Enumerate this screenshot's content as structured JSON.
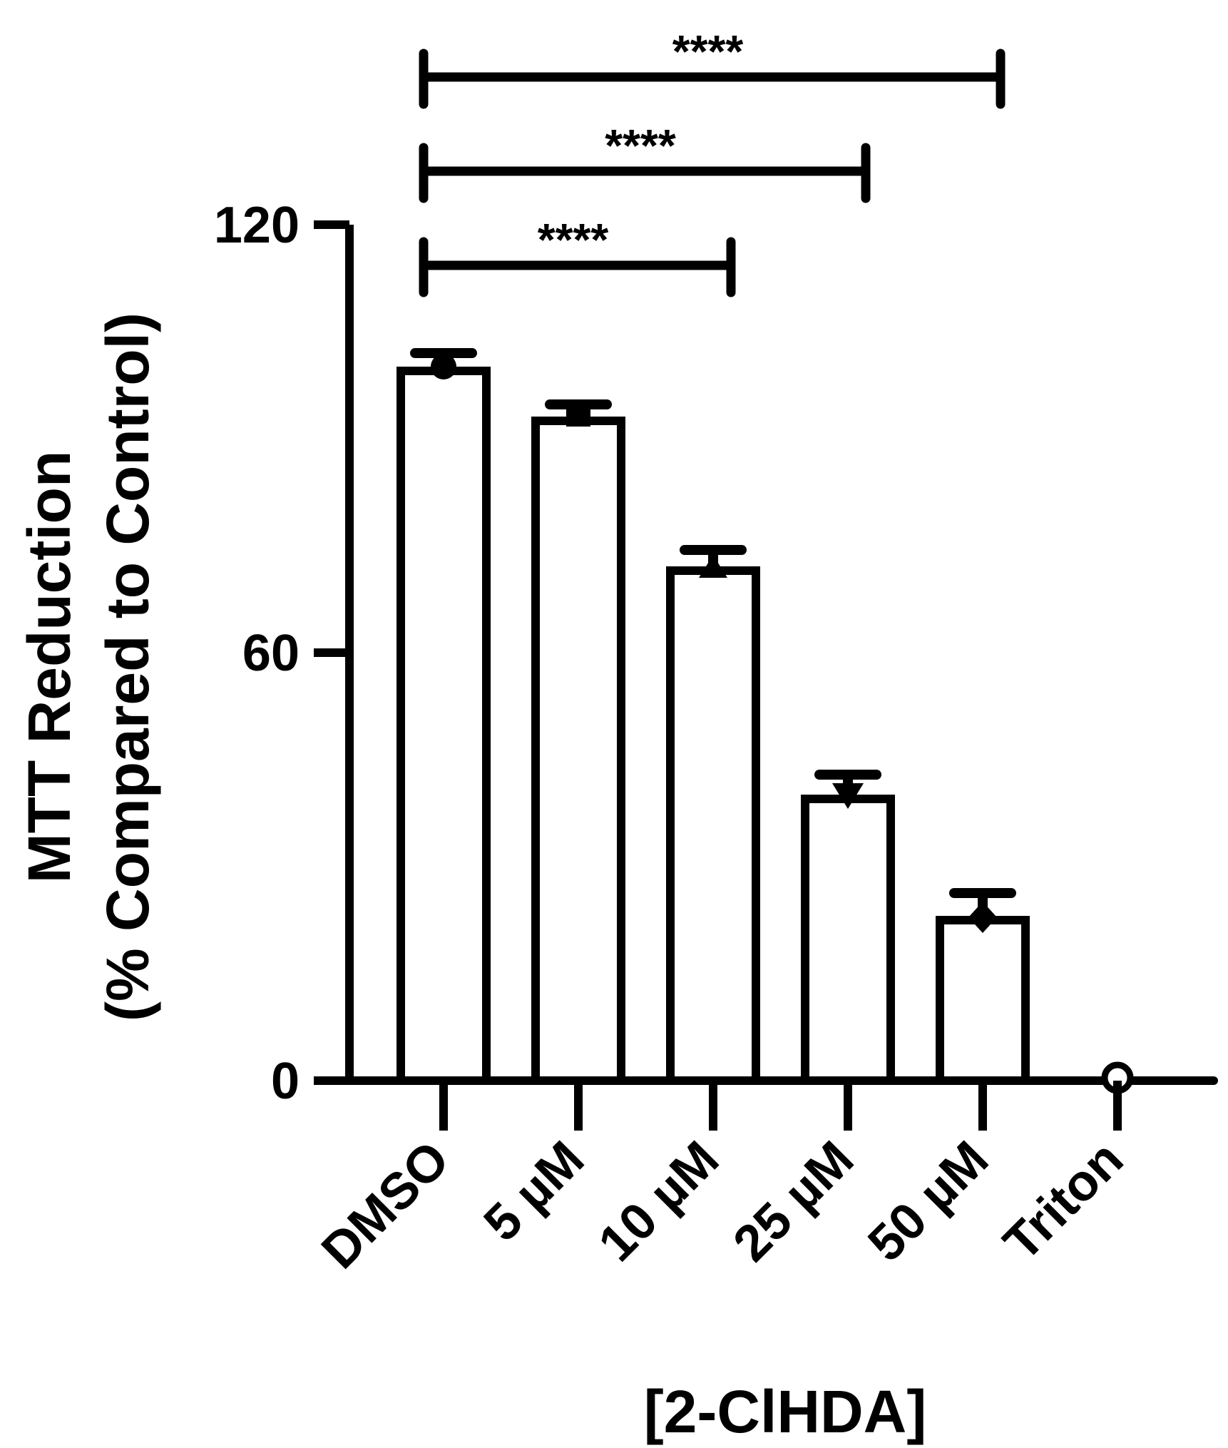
{
  "chart_data": {
    "type": "bar",
    "title": "",
    "xlabel": "[2-ClHDA]",
    "ylabel_lines": [
      "MTT Reduction",
      "(% Compared to Control)"
    ],
    "ylim": [
      0,
      120
    ],
    "yticks": [
      0,
      60,
      120
    ],
    "categories": [
      "DMSO",
      "5 µM",
      "10 µM",
      "25 µM",
      "50 µM",
      "Triton"
    ],
    "values": [
      99.5,
      92.5,
      71.5,
      39.5,
      22.5,
      0
    ],
    "errors": [
      2.5,
      2.3,
      2.9,
      3.4,
      3.8,
      0
    ],
    "markers": [
      "circle",
      "square",
      "triangle-up",
      "triangle-down",
      "diamond",
      "circle-open"
    ],
    "significance": [
      {
        "from": 0,
        "to": 2,
        "label": "****"
      },
      {
        "from": 0,
        "to": 3,
        "label": "****"
      },
      {
        "from": 0,
        "to": 4,
        "label": "****"
      }
    ],
    "grid": false,
    "legend": "none",
    "bar_fill": "#ffffff",
    "bar_stroke": "#000000"
  }
}
